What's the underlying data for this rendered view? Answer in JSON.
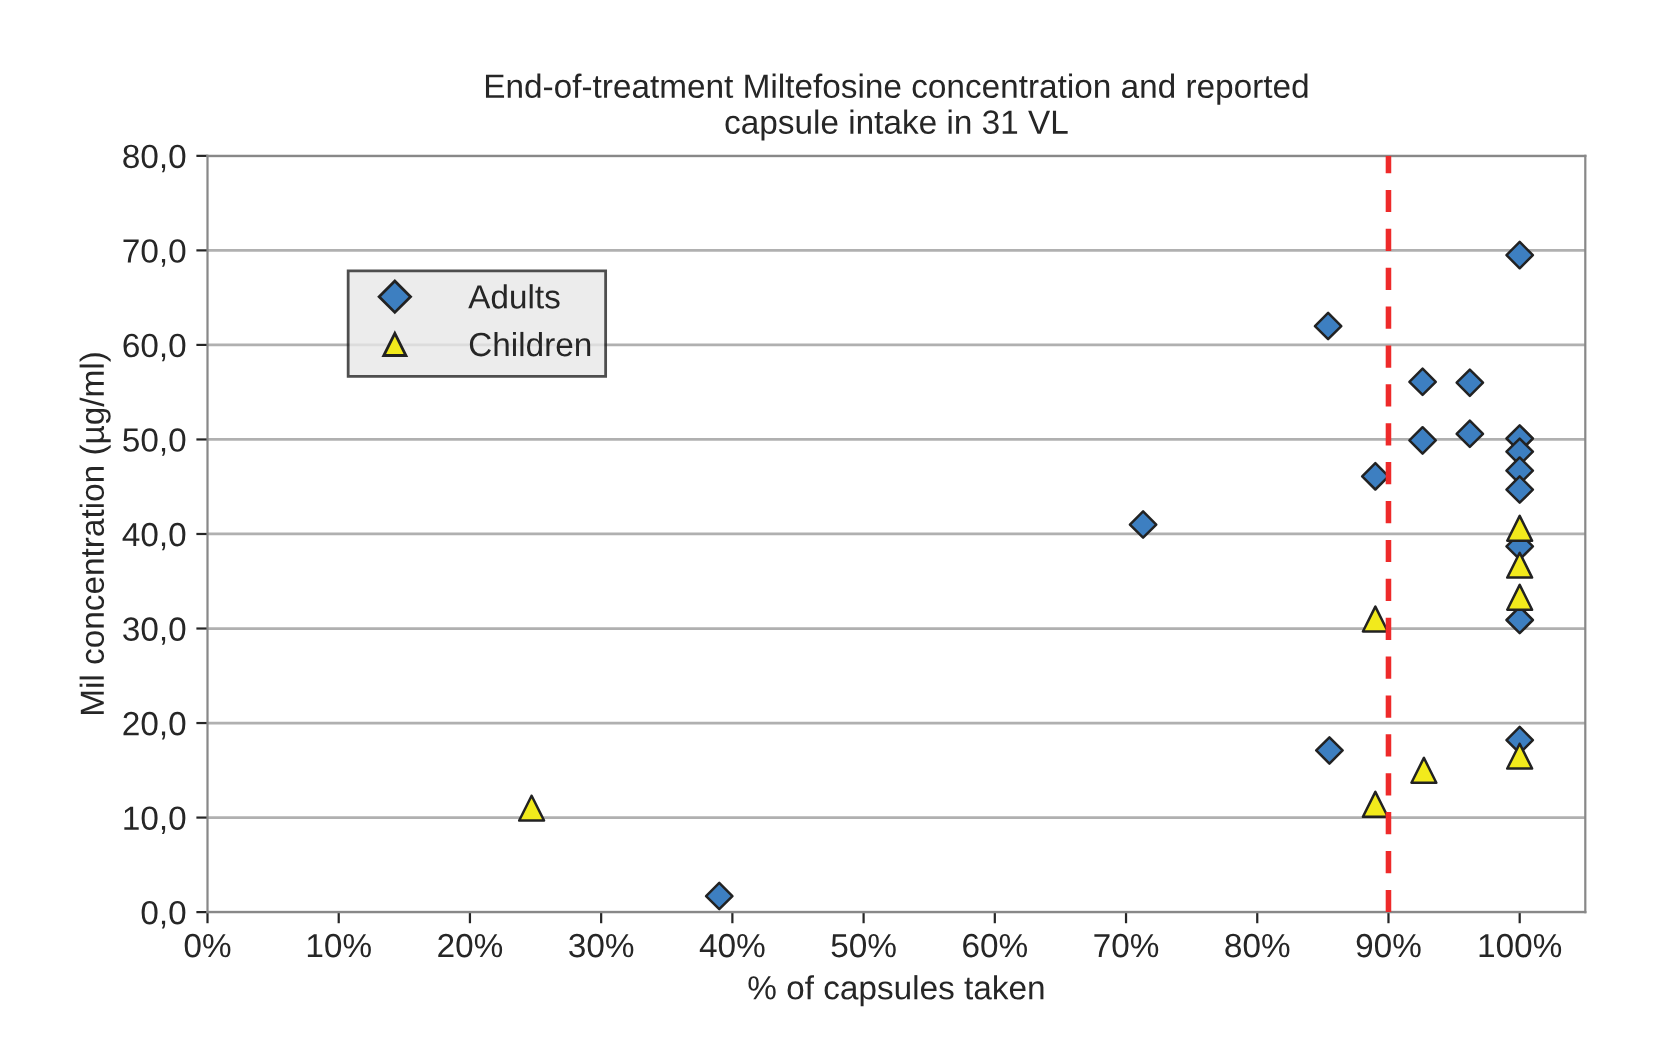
{
  "chart_data": {
    "type": "scatter",
    "title": "End-of-treatment Miltefosine concentration and reported\ncapsule intake in 31 VL",
    "xlabel": "% of capsules taken",
    "ylabel": "Mil concentration (µg/ml)",
    "series": [
      {
        "name": "Adults",
        "color": "#3d7fc1",
        "marker": "diamond",
        "x": [
          100,
          85.4,
          92.6,
          96.2,
          92.6,
          96.2,
          89.0,
          100,
          100,
          100,
          100,
          100,
          100,
          100,
          71.3,
          85.5,
          39.0
        ],
        "values": [
          69.5,
          62.0,
          56.1,
          56.0,
          49.9,
          50.6,
          46.1,
          50.1,
          48.7,
          46.7,
          44.7,
          38.7,
          30.9,
          18.2,
          41.0,
          17.1,
          1.7
        ]
      },
      {
        "name": "Children",
        "color": "#f2ea1c",
        "marker": "triangle",
        "x": [
          24.7,
          89.0,
          92.7,
          89.0,
          100,
          100,
          100,
          100
        ],
        "values": [
          11.0,
          31.0,
          15.0,
          11.4,
          40.6,
          36.7,
          33.3,
          16.5
        ]
      }
    ],
    "xlim": [
      0,
      105
    ],
    "ylim": [
      0,
      80
    ],
    "xticks": [
      {
        "value": 0,
        "label": "0%"
      },
      {
        "value": 10,
        "label": "10%"
      },
      {
        "value": 20,
        "label": "20%"
      },
      {
        "value": 30,
        "label": "30%"
      },
      {
        "value": 40,
        "label": "40%"
      },
      {
        "value": 50,
        "label": "50%"
      },
      {
        "value": 60,
        "label": "60%"
      },
      {
        "value": 70,
        "label": "70%"
      },
      {
        "value": 80,
        "label": "80%"
      },
      {
        "value": 90,
        "label": "90%"
      },
      {
        "value": 100,
        "label": "100%"
      }
    ],
    "yticks": [
      {
        "value": 0,
        "label": "0,0"
      },
      {
        "value": 10,
        "label": "10,0"
      },
      {
        "value": 20,
        "label": "20,0"
      },
      {
        "value": 30,
        "label": "30,0"
      },
      {
        "value": 40,
        "label": "40,0"
      },
      {
        "value": 50,
        "label": "50,0"
      },
      {
        "value": 60,
        "label": "60,0"
      },
      {
        "value": 70,
        "label": "70,0"
      },
      {
        "value": 80,
        "label": "80,0"
      }
    ],
    "ref_lines": [
      {
        "axis": "x",
        "value": 90,
        "color": "#ee2a2a",
        "line_style": "dashed"
      }
    ],
    "grid": "y",
    "legend": "top left"
  }
}
